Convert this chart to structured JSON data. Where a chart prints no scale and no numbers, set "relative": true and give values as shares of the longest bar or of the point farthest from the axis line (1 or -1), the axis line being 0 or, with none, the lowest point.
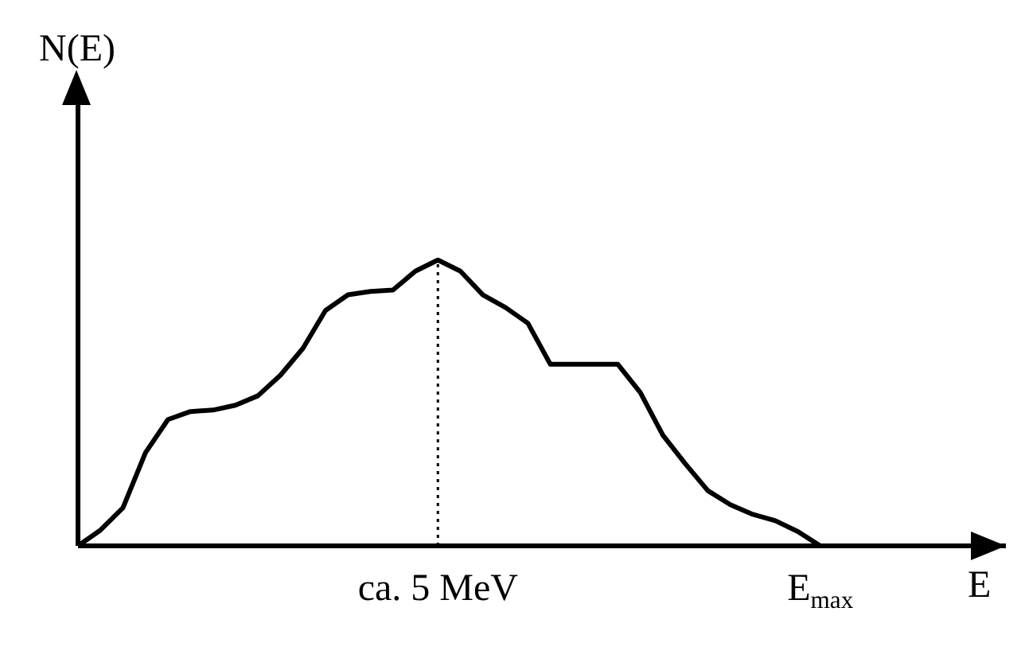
{
  "chart_data": {
    "type": "line",
    "relative": true,
    "xlabel": "E",
    "ylabel": "N(E)",
    "categories": [
      null,
      null,
      null,
      null,
      null,
      null,
      null,
      null,
      null,
      null,
      null,
      null,
      null,
      null,
      null,
      null,
      "ca. 5 MeV",
      null,
      null,
      null,
      null,
      null,
      null,
      null,
      null,
      null,
      null,
      null,
      null,
      null,
      null,
      null,
      null,
      "E$_{max}$"
    ],
    "values": [
      0,
      0.055,
      0.133,
      0.326,
      0.442,
      0.47,
      0.475,
      0.492,
      0.525,
      0.597,
      0.691,
      0.823,
      0.878,
      0.89,
      0.895,
      0.961,
      1,
      0.961,
      0.878,
      0.834,
      0.779,
      0.635,
      0.635,
      0.635,
      0.635,
      0.536,
      0.387,
      0.287,
      0.193,
      0.144,
      0.11,
      0.088,
      0.05,
      0
    ],
    "color": "#000000",
    "marker": "none",
    "line_style": "solid",
    "grid": false,
    "legend": false,
    "ref_lines": [
      {
        "axis": "x",
        "value": "ca. 5 MeV",
        "line_style": "dotted",
        "color": "#000000"
      }
    ]
  }
}
